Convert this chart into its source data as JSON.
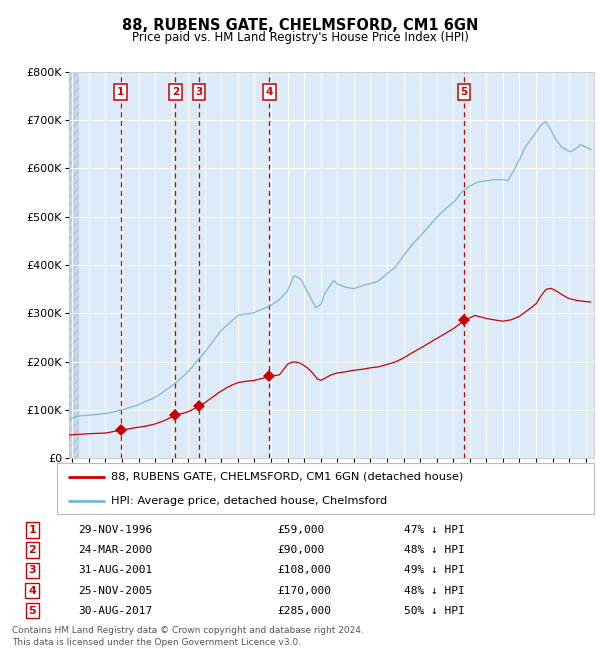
{
  "title": "88, RUBENS GATE, CHELMSFORD, CM1 6GN",
  "subtitle": "Price paid vs. HM Land Registry's House Price Index (HPI)",
  "footer": "Contains HM Land Registry data © Crown copyright and database right 2024.\nThis data is licensed under the Open Government Licence v3.0.",
  "legend_line1": "88, RUBENS GATE, CHELMSFORD, CM1 6GN (detached house)",
  "legend_line2": "HPI: Average price, detached house, Chelmsford",
  "sale_dates_x": [
    1996.91,
    2000.23,
    2001.66,
    2005.9,
    2017.66
  ],
  "sale_prices_y": [
    59000,
    90000,
    108000,
    170000,
    285000
  ],
  "sale_labels": [
    "1",
    "2",
    "3",
    "4",
    "5"
  ],
  "table_rows": [
    [
      "1",
      "29-NOV-1996",
      "£59,000",
      "47% ↓ HPI"
    ],
    [
      "2",
      "24-MAR-2000",
      "£90,000",
      "48% ↓ HPI"
    ],
    [
      "3",
      "31-AUG-2001",
      "£108,000",
      "49% ↓ HPI"
    ],
    [
      "4",
      "25-NOV-2005",
      "£170,000",
      "48% ↓ HPI"
    ],
    [
      "5",
      "30-AUG-2017",
      "£285,000",
      "50% ↓ HPI"
    ]
  ],
  "hpi_color": "#7ab8d9",
  "price_color": "#cc0000",
  "dashed_color": "#cc0000",
  "background_chart": "#ddeaf7",
  "ylim": [
    0,
    800000
  ],
  "yticks": [
    0,
    100000,
    200000,
    300000,
    400000,
    500000,
    600000,
    700000,
    800000
  ],
  "xlim_start": 1993.8,
  "xlim_end": 2025.5,
  "xticks": [
    1994,
    1995,
    1996,
    1997,
    1998,
    1999,
    2000,
    2001,
    2002,
    2003,
    2004,
    2005,
    2006,
    2007,
    2008,
    2009,
    2010,
    2011,
    2012,
    2013,
    2014,
    2015,
    2016,
    2017,
    2018,
    2019,
    2020,
    2021,
    2022,
    2023,
    2024,
    2025
  ],
  "hpi_anchors": [
    [
      1993.8,
      82000
    ],
    [
      1994.5,
      87000
    ],
    [
      1995.0,
      90000
    ],
    [
      1996.0,
      94000
    ],
    [
      1997.0,
      103000
    ],
    [
      1998.0,
      113000
    ],
    [
      1999.0,
      128000
    ],
    [
      2000.0,
      152000
    ],
    [
      2001.0,
      182000
    ],
    [
      2002.0,
      222000
    ],
    [
      2003.0,
      268000
    ],
    [
      2004.0,
      298000
    ],
    [
      2005.0,
      303000
    ],
    [
      2005.5,
      310000
    ],
    [
      2006.0,
      318000
    ],
    [
      2006.5,
      330000
    ],
    [
      2007.0,
      348000
    ],
    [
      2007.4,
      378000
    ],
    [
      2007.8,
      370000
    ],
    [
      2008.2,
      345000
    ],
    [
      2008.7,
      312000
    ],
    [
      2009.0,
      318000
    ],
    [
      2009.3,
      345000
    ],
    [
      2009.8,
      368000
    ],
    [
      2010.0,
      360000
    ],
    [
      2010.5,
      355000
    ],
    [
      2011.0,
      352000
    ],
    [
      2011.5,
      358000
    ],
    [
      2012.0,
      362000
    ],
    [
      2012.5,
      368000
    ],
    [
      2013.0,
      382000
    ],
    [
      2013.5,
      395000
    ],
    [
      2014.0,
      418000
    ],
    [
      2014.5,
      440000
    ],
    [
      2015.0,
      458000
    ],
    [
      2015.5,
      478000
    ],
    [
      2016.0,
      498000
    ],
    [
      2016.5,
      515000
    ],
    [
      2017.0,
      528000
    ],
    [
      2017.5,
      548000
    ],
    [
      2018.0,
      562000
    ],
    [
      2018.5,
      570000
    ],
    [
      2019.0,
      572000
    ],
    [
      2019.5,
      575000
    ],
    [
      2020.0,
      575000
    ],
    [
      2020.3,
      572000
    ],
    [
      2020.7,
      595000
    ],
    [
      2021.0,
      615000
    ],
    [
      2021.3,
      638000
    ],
    [
      2021.7,
      658000
    ],
    [
      2022.0,
      672000
    ],
    [
      2022.3,
      688000
    ],
    [
      2022.6,
      695000
    ],
    [
      2022.9,
      678000
    ],
    [
      2023.2,
      658000
    ],
    [
      2023.5,
      645000
    ],
    [
      2023.8,
      638000
    ],
    [
      2024.1,
      632000
    ],
    [
      2024.4,
      640000
    ],
    [
      2024.7,
      648000
    ],
    [
      2025.0,
      642000
    ],
    [
      2025.3,
      638000
    ]
  ],
  "price_anchors": [
    [
      1993.8,
      48000
    ],
    [
      1994.5,
      50000
    ],
    [
      1995.5,
      52000
    ],
    [
      1996.0,
      53000
    ],
    [
      1996.91,
      59000
    ],
    [
      1997.3,
      61000
    ],
    [
      1997.8,
      64000
    ],
    [
      1998.5,
      68000
    ],
    [
      1999.0,
      72000
    ],
    [
      1999.5,
      78000
    ],
    [
      2000.23,
      90000
    ],
    [
      2000.8,
      95000
    ],
    [
      2001.0,
      97000
    ],
    [
      2001.66,
      108000
    ],
    [
      2002.0,
      115000
    ],
    [
      2002.5,
      128000
    ],
    [
      2003.0,
      140000
    ],
    [
      2003.5,
      150000
    ],
    [
      2004.0,
      157000
    ],
    [
      2004.5,
      160000
    ],
    [
      2005.0,
      162000
    ],
    [
      2005.9,
      170000
    ],
    [
      2006.0,
      171000
    ],
    [
      2006.2,
      172000
    ],
    [
      2006.5,
      173000
    ],
    [
      2007.0,
      196000
    ],
    [
      2007.3,
      200000
    ],
    [
      2007.5,
      200000
    ],
    [
      2007.8,
      197000
    ],
    [
      2008.2,
      188000
    ],
    [
      2008.5,
      178000
    ],
    [
      2008.8,
      165000
    ],
    [
      2009.0,
      162000
    ],
    [
      2009.3,
      168000
    ],
    [
      2009.7,
      175000
    ],
    [
      2010.0,
      178000
    ],
    [
      2010.5,
      180000
    ],
    [
      2011.0,
      183000
    ],
    [
      2011.5,
      185000
    ],
    [
      2012.0,
      188000
    ],
    [
      2012.5,
      190000
    ],
    [
      2013.0,
      195000
    ],
    [
      2013.5,
      200000
    ],
    [
      2014.0,
      208000
    ],
    [
      2014.5,
      218000
    ],
    [
      2015.0,
      228000
    ],
    [
      2015.5,
      238000
    ],
    [
      2016.0,
      248000
    ],
    [
      2016.5,
      258000
    ],
    [
      2017.0,
      268000
    ],
    [
      2017.66,
      285000
    ],
    [
      2018.0,
      290000
    ],
    [
      2018.3,
      295000
    ],
    [
      2018.6,
      292000
    ],
    [
      2019.0,
      288000
    ],
    [
      2019.5,
      285000
    ],
    [
      2020.0,
      282000
    ],
    [
      2020.5,
      285000
    ],
    [
      2021.0,
      292000
    ],
    [
      2021.5,
      305000
    ],
    [
      2022.0,
      318000
    ],
    [
      2022.3,
      335000
    ],
    [
      2022.6,
      348000
    ],
    [
      2022.9,
      350000
    ],
    [
      2023.2,
      345000
    ],
    [
      2023.5,
      338000
    ],
    [
      2023.8,
      332000
    ],
    [
      2024.1,
      328000
    ],
    [
      2024.5,
      325000
    ],
    [
      2025.0,
      323000
    ],
    [
      2025.3,
      322000
    ]
  ]
}
